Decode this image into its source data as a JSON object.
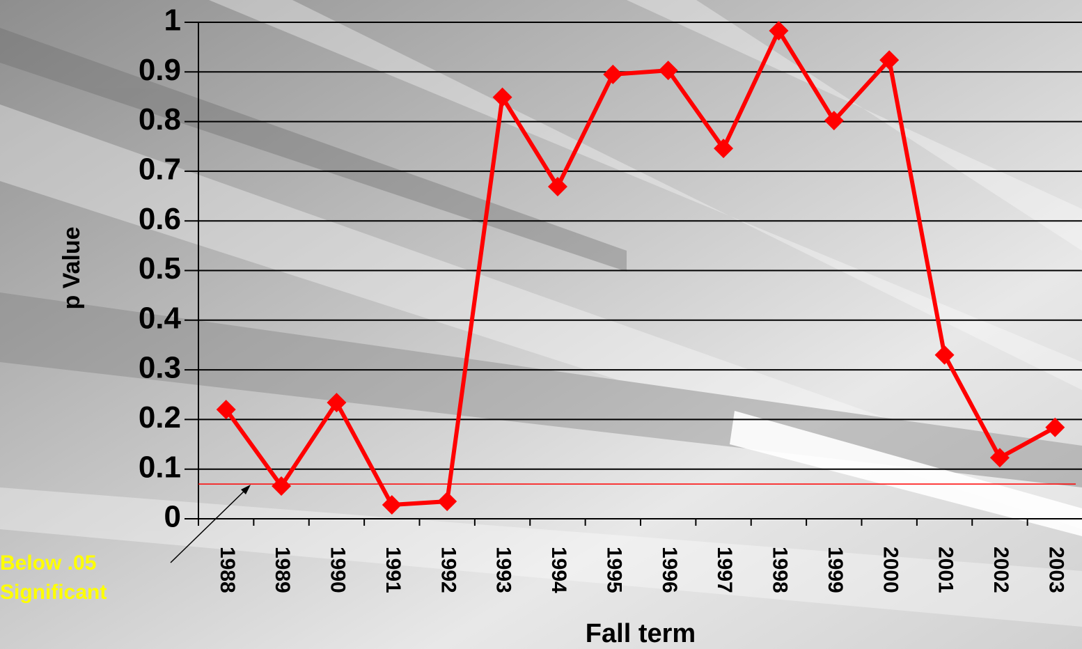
{
  "chart_data": {
    "type": "line",
    "x_label": "Fall term",
    "y_label": "p Value",
    "categories": [
      "1988",
      "1989",
      "1990",
      "1991",
      "1992",
      "1993",
      "1994",
      "1995",
      "1996",
      "1997",
      "1998",
      "1999",
      "2000",
      "2001",
      "2002",
      "2003"
    ],
    "series": [
      {
        "color": "#ff0000",
        "values": [
          0.22,
          0.066,
          0.234,
          0.028,
          0.035,
          0.849,
          0.669,
          0.895,
          0.903,
          0.746,
          0.983,
          0.802,
          0.924,
          0.33,
          0.123,
          0.184
        ]
      }
    ],
    "ylim": [
      0,
      1
    ],
    "yticks": [
      0,
      0.1,
      0.2,
      0.3,
      0.4,
      0.5,
      0.6,
      0.7,
      0.8,
      0.9,
      1
    ],
    "grid": true,
    "reference_line": {
      "value": 0.07,
      "color": "#ff0000"
    },
    "annotation": {
      "lines": [
        "Below .05",
        "Significant"
      ],
      "color": "#ffff00"
    }
  }
}
